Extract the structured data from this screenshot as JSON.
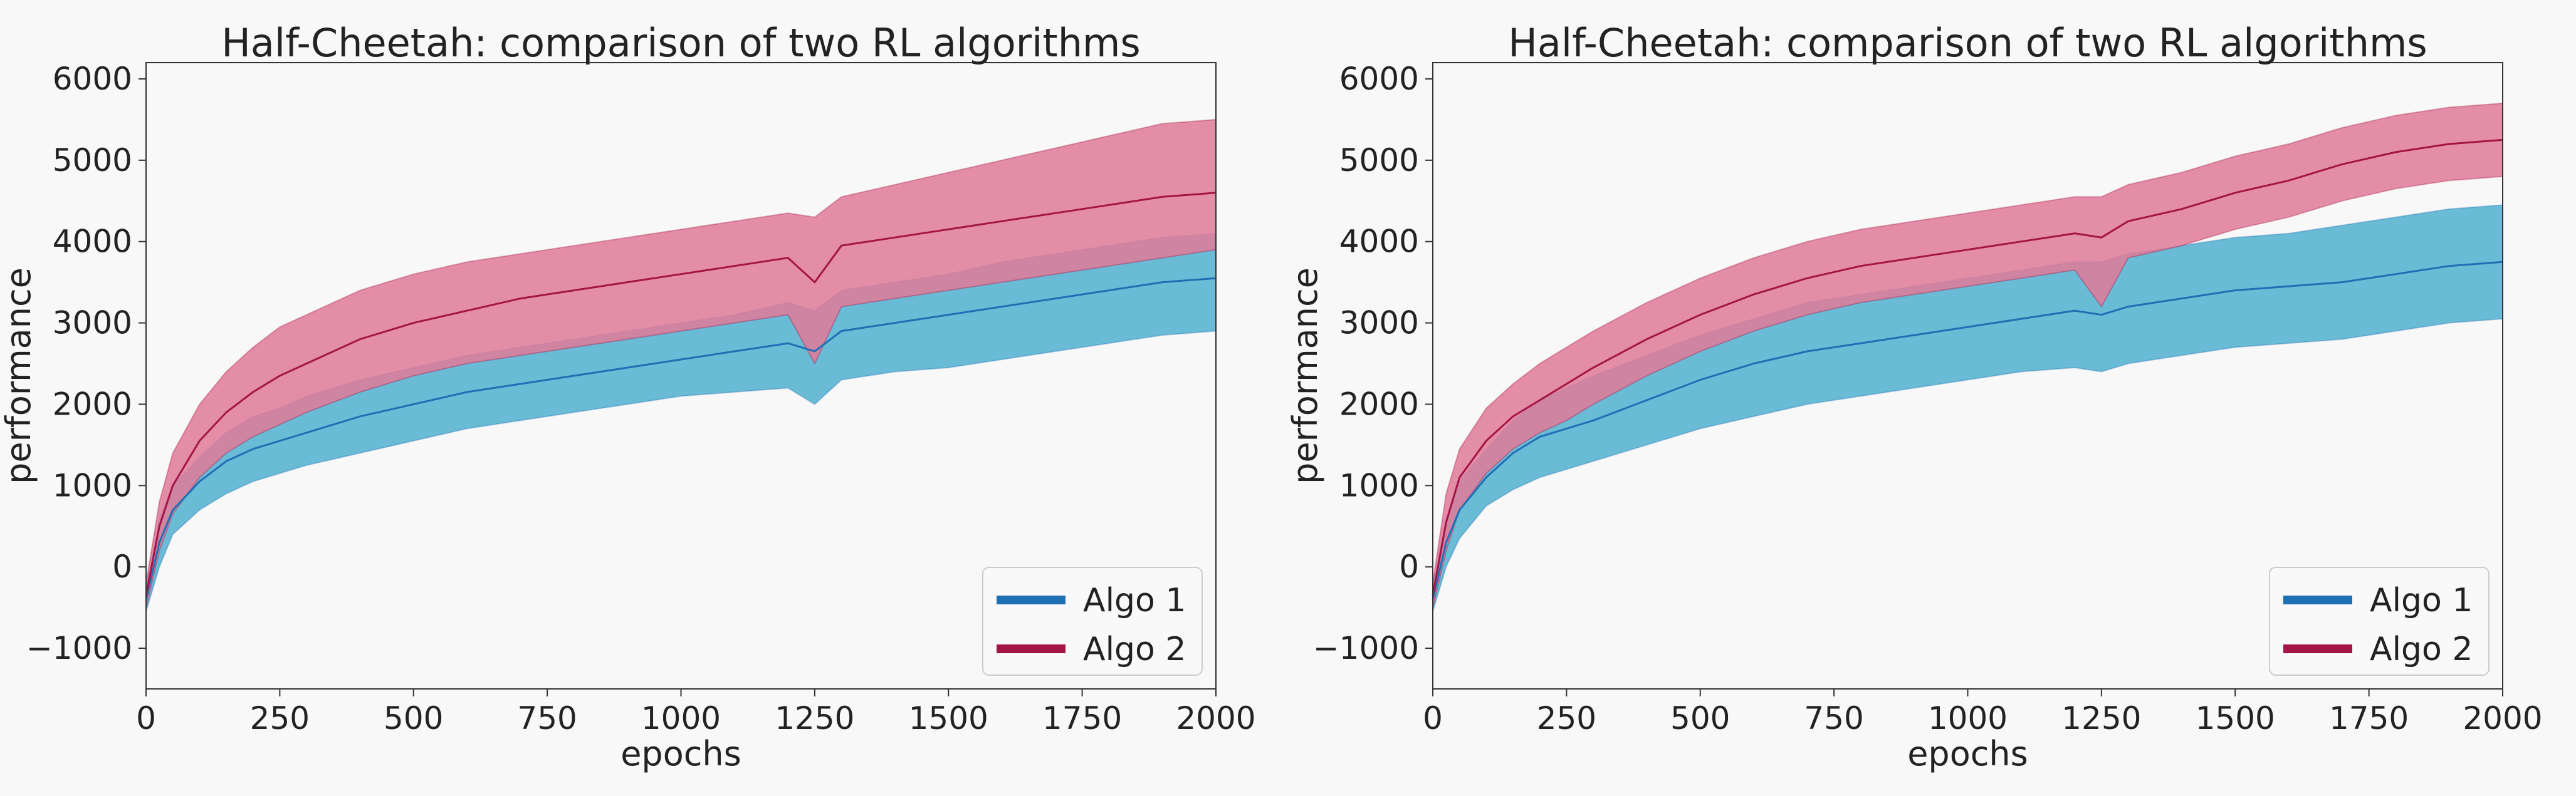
{
  "chart_data": [
    {
      "type": "line",
      "title": "Half-Cheetah: comparison of two RL algorithms",
      "xlabel": "epochs",
      "ylabel": "performance",
      "xlim": [
        0,
        2000
      ],
      "ylim": [
        -1500,
        6200
      ],
      "xticks": [
        0,
        250,
        500,
        750,
        1000,
        1250,
        1500,
        1750,
        2000
      ],
      "xtick_labels": [
        "0",
        "250",
        "500",
        "750",
        "1000",
        "1250",
        "1500",
        "1750",
        "2000"
      ],
      "yticks": [
        -1000,
        0,
        1000,
        2000,
        3000,
        4000,
        5000,
        6000
      ],
      "ytick_labels": [
        "−1000",
        "0",
        "1000",
        "2000",
        "3000",
        "4000",
        "5000",
        "6000"
      ],
      "grid": false,
      "legend_position": "bottom-right",
      "x": [
        0,
        25,
        50,
        100,
        150,
        200,
        250,
        300,
        400,
        500,
        600,
        700,
        800,
        900,
        1000,
        1100,
        1200,
        1250,
        1300,
        1400,
        1500,
        1600,
        1700,
        1800,
        1900,
        2000
      ],
      "series": [
        {
          "name": "Algo 1",
          "color": "#1f6fb5",
          "band_color": "#5ab4d2",
          "mean": [
            -400,
            300,
            700,
            1050,
            1300,
            1450,
            1550,
            1650,
            1850,
            2000,
            2150,
            2250,
            2350,
            2450,
            2550,
            2650,
            2750,
            2650,
            2900,
            3000,
            3100,
            3200,
            3300,
            3400,
            3500,
            3550
          ],
          "lower": [
            -550,
            0,
            400,
            700,
            900,
            1050,
            1150,
            1250,
            1400,
            1550,
            1700,
            1800,
            1900,
            2000,
            2100,
            2150,
            2200,
            2000,
            2300,
            2400,
            2450,
            2550,
            2650,
            2750,
            2850,
            2900
          ],
          "upper": [
            -250,
            600,
            1000,
            1350,
            1650,
            1850,
            1950,
            2100,
            2300,
            2450,
            2600,
            2700,
            2800,
            2900,
            3000,
            3100,
            3250,
            3150,
            3400,
            3500,
            3600,
            3750,
            3850,
            3950,
            4050,
            4100
          ]
        },
        {
          "name": "Algo 2",
          "color": "#a31547",
          "band_color": "#e07a98",
          "mean": [
            -350,
            500,
            1000,
            1550,
            1900,
            2150,
            2350,
            2500,
            2800,
            3000,
            3150,
            3300,
            3400,
            3500,
            3600,
            3700,
            3800,
            3500,
            3950,
            4050,
            4150,
            4250,
            4350,
            4450,
            4550,
            4600
          ],
          "lower": [
            -500,
            200,
            650,
            1100,
            1400,
            1600,
            1750,
            1900,
            2150,
            2350,
            2500,
            2600,
            2700,
            2800,
            2900,
            3000,
            3100,
            2500,
            3200,
            3300,
            3400,
            3500,
            3600,
            3700,
            3800,
            3900
          ],
          "upper": [
            -200,
            800,
            1400,
            2000,
            2400,
            2700,
            2950,
            3100,
            3400,
            3600,
            3750,
            3850,
            3950,
            4050,
            4150,
            4250,
            4350,
            4300,
            4550,
            4700,
            4850,
            5000,
            5150,
            5300,
            5450,
            5500
          ]
        }
      ]
    },
    {
      "type": "line",
      "title": "Half-Cheetah: comparison of two RL algorithms",
      "xlabel": "epochs",
      "ylabel": "performance",
      "xlim": [
        0,
        2000
      ],
      "ylim": [
        -1500,
        6200
      ],
      "xticks": [
        0,
        250,
        500,
        750,
        1000,
        1250,
        1500,
        1750,
        2000
      ],
      "xtick_labels": [
        "0",
        "250",
        "500",
        "750",
        "1000",
        "1250",
        "1500",
        "1750",
        "2000"
      ],
      "yticks": [
        -1000,
        0,
        1000,
        2000,
        3000,
        4000,
        5000,
        6000
      ],
      "ytick_labels": [
        "−1000",
        "0",
        "1000",
        "2000",
        "3000",
        "4000",
        "5000",
        "6000"
      ],
      "grid": false,
      "legend_position": "bottom-right",
      "x": [
        0,
        25,
        50,
        100,
        150,
        200,
        250,
        300,
        400,
        500,
        600,
        700,
        800,
        900,
        1000,
        1100,
        1200,
        1250,
        1300,
        1400,
        1500,
        1600,
        1700,
        1800,
        1900,
        2000
      ],
      "series": [
        {
          "name": "Algo 1",
          "color": "#1f6fb5",
          "band_color": "#5ab4d2",
          "mean": [
            -400,
            300,
            700,
            1100,
            1400,
            1600,
            1700,
            1800,
            2050,
            2300,
            2500,
            2650,
            2750,
            2850,
            2950,
            3050,
            3150,
            3100,
            3200,
            3300,
            3400,
            3450,
            3500,
            3600,
            3700,
            3750
          ],
          "lower": [
            -550,
            0,
            350,
            750,
            950,
            1100,
            1200,
            1300,
            1500,
            1700,
            1850,
            2000,
            2100,
            2200,
            2300,
            2400,
            2450,
            2400,
            2500,
            2600,
            2700,
            2750,
            2800,
            2900,
            3000,
            3050
          ],
          "upper": [
            -250,
            600,
            1050,
            1450,
            1800,
            2050,
            2200,
            2350,
            2600,
            2850,
            3050,
            3250,
            3350,
            3450,
            3550,
            3650,
            3750,
            3750,
            3850,
            3950,
            4050,
            4100,
            4200,
            4300,
            4400,
            4450
          ]
        },
        {
          "name": "Algo 2",
          "color": "#a31547",
          "band_color": "#e07a98",
          "mean": [
            -350,
            550,
            1100,
            1550,
            1850,
            2050,
            2250,
            2450,
            2800,
            3100,
            3350,
            3550,
            3700,
            3800,
            3900,
            4000,
            4100,
            4050,
            4250,
            4400,
            4600,
            4750,
            4950,
            5100,
            5200,
            5250
          ],
          "lower": [
            -500,
            200,
            700,
            1150,
            1450,
            1650,
            1800,
            2000,
            2350,
            2650,
            2900,
            3100,
            3250,
            3350,
            3450,
            3550,
            3650,
            3200,
            3800,
            3950,
            4150,
            4300,
            4500,
            4650,
            4750,
            4800
          ],
          "upper": [
            -200,
            900,
            1450,
            1950,
            2250,
            2500,
            2700,
            2900,
            3250,
            3550,
            3800,
            4000,
            4150,
            4250,
            4350,
            4450,
            4550,
            4550,
            4700,
            4850,
            5050,
            5200,
            5400,
            5550,
            5650,
            5700
          ]
        }
      ]
    }
  ]
}
